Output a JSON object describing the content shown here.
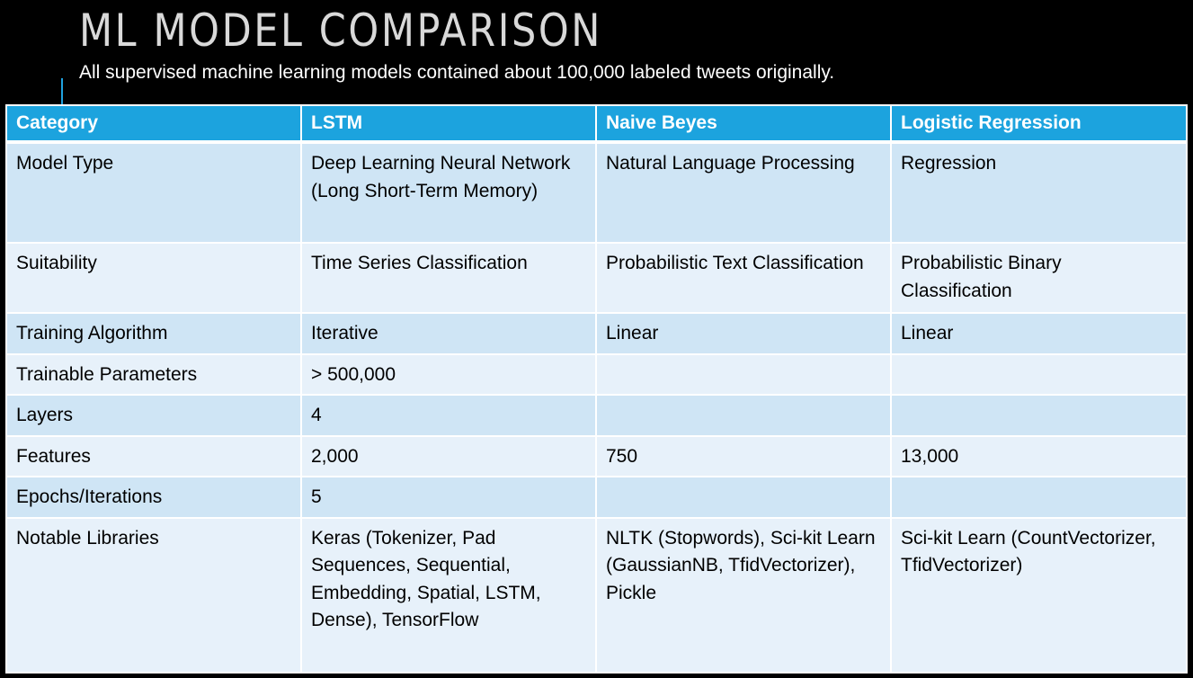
{
  "slide": {
    "title": "ML MODEL COMPARISON",
    "subtitle": "All supervised machine learning models contained about 100,000 labeled tweets originally."
  },
  "colors": {
    "background": "#000000",
    "header": "#1ca3de",
    "row_dark": "#cfe5f5",
    "row_light": "#e7f1fa"
  },
  "table": {
    "headers": [
      "Category",
      "LSTM",
      "Naive Beyes",
      "Logistic Regression"
    ],
    "rows": [
      [
        "Model Type",
        "Deep Learning Neural Network (Long Short-Term Memory)",
        "Natural Language Processing",
        "Regression"
      ],
      [
        "Suitability",
        "Time Series Classification",
        "Probabilistic Text Classification",
        "Probabilistic Binary Classification"
      ],
      [
        "Training Algorithm",
        "Iterative",
        "Linear",
        "Linear"
      ],
      [
        "Trainable Parameters",
        "> 500,000",
        "",
        ""
      ],
      [
        "Layers",
        "4",
        "",
        ""
      ],
      [
        "Features",
        "2,000",
        "750",
        "13,000"
      ],
      [
        "Epochs/Iterations",
        "5",
        "",
        ""
      ],
      [
        "Notable Libraries",
        "Keras (Tokenizer, Pad Sequences, Sequential, Embedding, Spatial, LSTM, Dense), TensorFlow",
        "NLTK (Stopwords), Sci-kit Learn (GaussianNB, TfidVectorizer), Pickle",
        "Sci-kit Learn (CountVectorizer, TfidVectorizer)"
      ]
    ]
  }
}
